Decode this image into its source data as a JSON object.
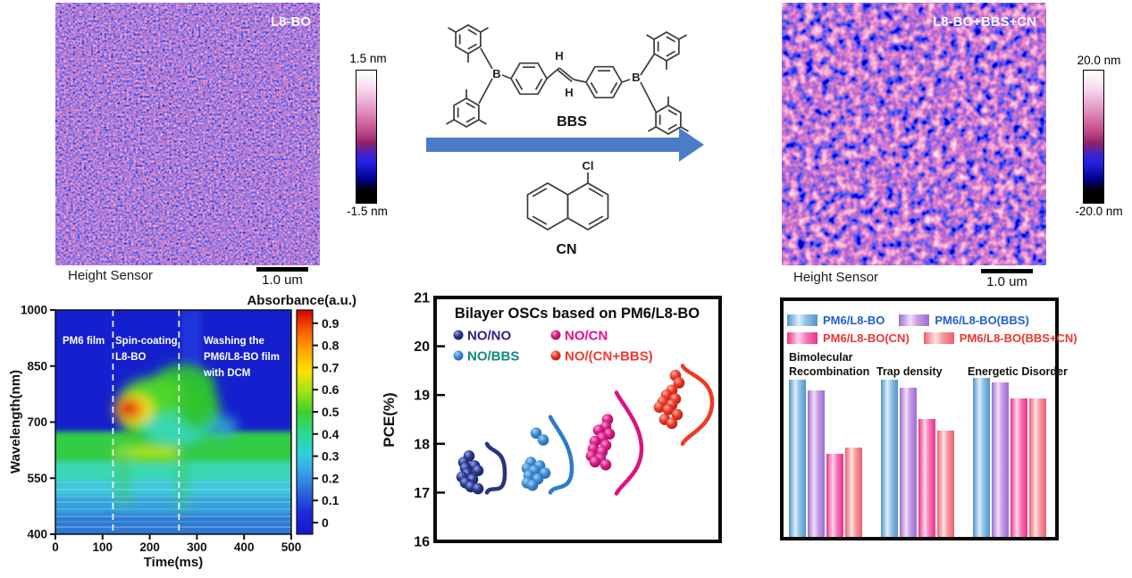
{
  "afm_left": {
    "title": "L8-BO",
    "colorbar_max": "1.5 nm",
    "colorbar_min": "-1.5 nm",
    "caption": "Height Sensor",
    "scalebar_label": "1.0 um",
    "colorbar_stops": [
      [
        "#ffffff",
        0
      ],
      [
        "#f6dcee",
        13
      ],
      [
        "#e49cc8",
        28
      ],
      [
        "#c8538e",
        44
      ],
      [
        "#8e2268",
        55
      ],
      [
        "#4422c8",
        63
      ],
      [
        "#2222e0",
        70
      ],
      [
        "#000090",
        82
      ],
      [
        "#000000",
        91
      ],
      [
        "#000000",
        100
      ]
    ]
  },
  "afm_right": {
    "title": "L8-BO+BBS+CN",
    "colorbar_max": "20.0 nm",
    "colorbar_min": "-20.0 nm",
    "caption": "Height Sensor",
    "scalebar_label": "1.0 um",
    "colorbar_stops": [
      [
        "#ffffff",
        0
      ],
      [
        "#f6dcee",
        13
      ],
      [
        "#e49cc8",
        28
      ],
      [
        "#c8538e",
        44
      ],
      [
        "#8e2268",
        55
      ],
      [
        "#4422c8",
        63
      ],
      [
        "#2222e0",
        70
      ],
      [
        "#000090",
        82
      ],
      [
        "#000000",
        91
      ],
      [
        "#000000",
        100
      ]
    ]
  },
  "scheme": {
    "molecule_top_label": "BBS",
    "molecule_bottom_label": "CN",
    "boron_label": "B",
    "hydrogen_label": "H",
    "chlorine_label": "Cl",
    "arrow_color": "#4a7cc8"
  },
  "chart_data": [
    {
      "type": "heatmap",
      "xlabel": "Time(ms)",
      "ylabel": "Wavelength(nm)",
      "colorbar_title": "Absorbance(a.u.)",
      "xticks": [
        0,
        100,
        200,
        300,
        400,
        500
      ],
      "yticks": [
        400,
        550,
        700,
        850,
        1000
      ],
      "xlim": [
        0,
        500
      ],
      "ylim": [
        400,
        1000
      ],
      "colorbar_tick_labels": [
        "0",
        "0.1",
        "0.2",
        "0.3",
        "0.4",
        "0.5",
        "0.6",
        "0.7",
        "0.8",
        "0.9"
      ],
      "colorbar_range": [
        0,
        1
      ],
      "jet_stops": [
        "#cf0000",
        "#ff5a00",
        "#ffa800",
        "#ffe000",
        "#9fe414",
        "#3ed02e",
        "#2bd88e",
        "#2fd2d8",
        "#35a0e6",
        "#2a62dc",
        "#1b2ad8",
        "#1515cc"
      ],
      "dashed_lines_ms": [
        122,
        262
      ],
      "annotations": {
        "region1": "PM6 film",
        "region2_line1": "Spin-coating",
        "region2_line2": "L8-BO",
        "region3_line1": "Washing the",
        "region3_line2": "PM6/L8-BO film",
        "region3_line3": "with DCM"
      },
      "features": {
        "hot_spot": {
          "time_ms": 145,
          "wavelength_nm": 720,
          "absorbance": 0.95
        },
        "plume": {
          "time_ms": [
            122,
            310
          ],
          "wavelength_nm_max": 845,
          "absorbance": 0.5
        },
        "green_band": {
          "wavelength_nm": [
            555,
            650
          ],
          "absorbance": 0.5,
          "extent": "all times"
        },
        "cyan_lower_region": {
          "wavelength_nm": [
            400,
            550
          ],
          "absorbance": 0.2
        }
      }
    },
    {
      "type": "scatter",
      "title": "Bilayer OSCs based on PM6/L8-BO",
      "ylabel": "PCE(%)",
      "ylim": [
        16,
        21
      ],
      "yticks": [
        16,
        17,
        18,
        19,
        20,
        21
      ],
      "legend_position": "top-left inside",
      "series": [
        {
          "name": "NO/NO",
          "color": "#2b3a8f",
          "hi": "#97a6e8",
          "lo": "#141c52",
          "curve": "#28347e",
          "text_color": "#33207f",
          "points": [
            17.75,
            17.62,
            17.55,
            17.5,
            17.45,
            17.38,
            17.32,
            17.27,
            17.2,
            17.12,
            17.08
          ],
          "violin": {
            "top": 18.0,
            "peak": 17.4,
            "bottom": 17.0,
            "width": 20
          }
        },
        {
          "name": "NO/BBS",
          "color": "#3e8ed8",
          "hi": "#a9d2f5",
          "lo": "#1d5a99",
          "curve": "#2e7cc4",
          "text_color": "#0d8c7e",
          "points": [
            18.22,
            18.08,
            17.62,
            17.55,
            17.5,
            17.45,
            17.4,
            17.35,
            17.28,
            17.2,
            17.15
          ],
          "violin": {
            "top": 18.55,
            "peak": 17.5,
            "bottom": 17.0,
            "width": 24
          }
        },
        {
          "name": "NO/CN",
          "color": "#e01c88",
          "hi": "#f8a0d0",
          "lo": "#8f0e55",
          "curve": "#d9157f",
          "text_color": "#e60e8a",
          "points": [
            18.5,
            18.35,
            18.28,
            18.2,
            18.12,
            18.05,
            17.97,
            17.9,
            17.84,
            17.75,
            17.7,
            17.63,
            17.57
          ],
          "violin": {
            "top": 19.05,
            "peak": 17.9,
            "bottom": 16.98,
            "width": 28
          }
        },
        {
          "name": "NO/(CN+BBS)",
          "color": "#f03a28",
          "hi": "#ffb3a6",
          "lo": "#9c1d12",
          "curve": "#ee3a23",
          "text_color": "#f23a2c",
          "points": [
            19.4,
            19.25,
            19.1,
            19.0,
            18.92,
            18.86,
            18.8,
            18.75,
            18.7,
            18.6,
            18.5,
            18.42
          ],
          "violin": {
            "top": 19.6,
            "peak": 18.85,
            "bottom": 18.0,
            "width": 33
          }
        }
      ]
    },
    {
      "type": "bar",
      "categories": [
        "Bimolecular Recombination",
        "Trap density",
        "Energetic Disorder"
      ],
      "category_lines": [
        [
          "Bimolecular",
          "Recombination"
        ],
        [
          "Trap density"
        ],
        [
          "Energetic Disorder"
        ]
      ],
      "value_note": "relative heights, no value axis shown",
      "series": [
        {
          "name": "PM6/L8-BO",
          "edge": "#4f93cc",
          "light": "#ddeffa",
          "mid": "#90c2e4",
          "text_color": "#1d5fd2",
          "values": [
            0.99,
            0.99,
            1.0
          ]
        },
        {
          "name": "PM6/L8-BO(BBS)",
          "edge": "#9a6cd4",
          "light": "#f3dff5",
          "mid": "#c79ae6",
          "text_color": "#1d5fd2",
          "values": [
            0.92,
            0.94,
            0.97
          ]
        },
        {
          "name": "PM6/L8-BO(CN)",
          "edge": "#ec2f8c",
          "light": "#fcd9ea",
          "mid": "#f37ab4",
          "text_color": "#ea3530",
          "values": [
            0.52,
            0.74,
            0.87
          ]
        },
        {
          "name": "PM6/L8-BO(BBS+CN)",
          "edge": "#ec5f6e",
          "light": "#fce3e3",
          "mid": "#f49aa0",
          "text_color": "#ea3530",
          "values": [
            0.56,
            0.67,
            0.87
          ]
        }
      ],
      "legend_rows": [
        [
          0,
          1
        ],
        [
          2,
          3
        ]
      ]
    }
  ]
}
